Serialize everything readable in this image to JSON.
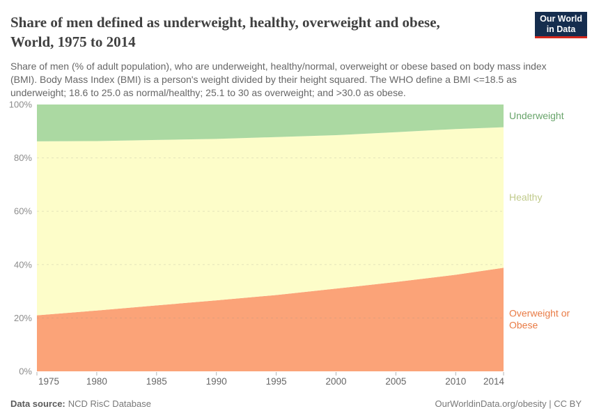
{
  "header": {
    "title_line1": "Share of men defined as underweight, healthy, overweight and obese,",
    "title_line2": "World, 1975 to 2014",
    "subtitle": "Share of men (% of adult population), who are underweight, healthy/normal, overweight or obese based on body mass index (BMI). Body Mass Index (BMI) is a person's weight divided by their height squared. The WHO define a BMI <=18.5 as underweight; 18.6 to 25.0 as normal/healthy; 25.1 to 30 as overweight; and >30.0 as obese."
  },
  "logo": {
    "line1": "Our World",
    "line2": "in Data",
    "bg_color": "#152d4e",
    "stripe_color": "#d3271c"
  },
  "chart_data": {
    "type": "area",
    "stacked": true,
    "title": "Share of men defined as underweight, healthy, overweight and obese, World, 1975 to 2014",
    "x": [
      1975,
      1980,
      1985,
      1990,
      1995,
      2000,
      2005,
      2010,
      2014
    ],
    "series": [
      {
        "name": "Overweight or Obese",
        "label_lines": [
          "Overweight or",
          "Obese"
        ],
        "area_color": "#fba378",
        "label_color": "#e97b45",
        "values": [
          21.0,
          22.8,
          24.7,
          26.6,
          28.6,
          31.0,
          33.5,
          36.2,
          38.8
        ]
      },
      {
        "name": "Healthy",
        "label_lines": [
          "Healthy"
        ],
        "area_color": "#fdfdc9",
        "label_color": "#c0ca8b",
        "values": [
          65.2,
          63.5,
          62.0,
          60.5,
          59.2,
          57.5,
          56.1,
          54.6,
          52.7
        ]
      },
      {
        "name": "Underweight",
        "label_lines": [
          "Underweight"
        ],
        "area_color": "#abd9a2",
        "label_color": "#68a46a",
        "values": [
          13.8,
          13.7,
          13.3,
          12.9,
          12.2,
          11.5,
          10.4,
          9.2,
          8.5
        ]
      }
    ],
    "xticks": [
      1975,
      1980,
      1985,
      1990,
      1995,
      2000,
      2005,
      2010,
      2014
    ],
    "yticks": [
      0,
      20,
      40,
      60,
      80,
      100
    ],
    "ytick_suffix": "%",
    "xlim": [
      1975,
      2014
    ],
    "ylim": [
      0,
      100
    ],
    "grid": true,
    "legend_position": "right"
  },
  "footer": {
    "source_label": "Data source:",
    "source_value": "NCD RisC Database",
    "link": "OurWorldinData.org/obesity | CC BY"
  }
}
